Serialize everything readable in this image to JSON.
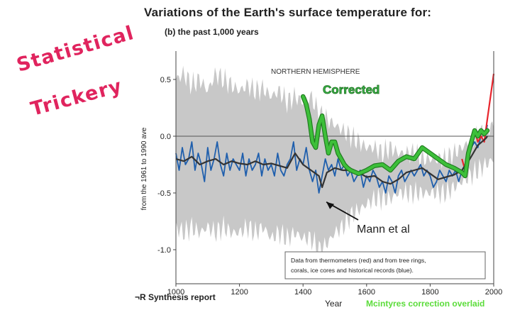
{
  "figure": {
    "title": "Variations of the Earth's surface temperature for:",
    "subtitle": "(b) the past 1,000 years",
    "handwritten_line1": "Statistical",
    "handwritten_line2": "Trickery",
    "source": "¬R Synthesis report",
    "credit": "Mcintyres correction overlaid",
    "colors": {
      "handwriting": "#e0245e",
      "credit": "#5bdc3a"
    }
  },
  "chart_data": {
    "type": "line",
    "title": "",
    "panel_label": "NORTHERN HEMISPHERE",
    "xlabel": "Year",
    "ylabel": "from the 1961 to 1990 ave",
    "xlim": [
      1000,
      2000
    ],
    "ylim": [
      -1.3,
      0.75
    ],
    "xticks": [
      1000,
      1200,
      1400,
      1600,
      1800,
      2000
    ],
    "yticks": [
      0.5,
      0.0,
      -0.5,
      -1.0
    ],
    "ytick_labels": [
      "0.5",
      "0.0",
      "-0.5",
      "-1.0"
    ],
    "grid": false,
    "legend_box_text": "Data from thermometers (red) and from tree rings, corals, ice cores and historical records (blue).",
    "annotations": [
      {
        "text": "Corrected",
        "color": "#39b54a",
        "x": 1460,
        "y": 0.47
      },
      {
        "text": "Mann et al",
        "color": "#222222",
        "x": 1640,
        "y": -0.8,
        "arrow_to": [
          1460,
          -0.53
        ]
      }
    ],
    "series": [
      {
        "role": "uncertainty",
        "color": "#c8c8c8",
        "x": [
          1000,
          1025,
          1050,
          1075,
          1100,
          1125,
          1150,
          1175,
          1200,
          1225,
          1250,
          1275,
          1300,
          1325,
          1350,
          1375,
          1400,
          1425,
          1450,
          1475,
          1500,
          1525,
          1550,
          1575,
          1600,
          1625,
          1650,
          1675,
          1700,
          1725,
          1750,
          1775,
          1800,
          1825,
          1850,
          1875,
          1900,
          1925,
          1950,
          1975,
          2000
        ],
        "upper": [
          0.5,
          0.55,
          0.45,
          0.5,
          0.4,
          0.55,
          0.5,
          0.45,
          0.4,
          0.45,
          0.4,
          0.42,
          0.35,
          0.4,
          0.3,
          0.35,
          0.3,
          0.35,
          0.2,
          0.15,
          0.1,
          0.05,
          0.0,
          -0.05,
          -0.1,
          -0.1,
          -0.15,
          -0.1,
          -0.15,
          -0.15,
          -0.15,
          -0.2,
          -0.2,
          -0.2,
          -0.2,
          -0.15,
          -0.1,
          -0.05,
          0.0,
          0.05,
          0.1
        ],
        "lower": [
          -0.8,
          -0.85,
          -0.8,
          -0.85,
          -0.8,
          -0.85,
          -0.8,
          -0.85,
          -0.85,
          -0.8,
          -0.85,
          -0.8,
          -0.9,
          -0.85,
          -0.9,
          -0.85,
          -0.9,
          -0.9,
          -1.0,
          -0.95,
          -0.85,
          -0.8,
          -0.7,
          -0.65,
          -0.6,
          -0.55,
          -0.55,
          -0.55,
          -0.5,
          -0.5,
          -0.5,
          -0.5,
          -0.5,
          -0.5,
          -0.5,
          -0.45,
          -0.4,
          -0.35,
          -0.3,
          -0.25,
          -0.2
        ]
      },
      {
        "role": "annual",
        "color": "#1f5fad",
        "x": [
          1000,
          1010,
          1020,
          1030,
          1040,
          1050,
          1060,
          1070,
          1080,
          1090,
          1100,
          1110,
          1120,
          1130,
          1140,
          1150,
          1160,
          1170,
          1180,
          1190,
          1200,
          1210,
          1220,
          1230,
          1240,
          1250,
          1260,
          1270,
          1280,
          1290,
          1300,
          1310,
          1320,
          1330,
          1340,
          1350,
          1360,
          1370,
          1380,
          1390,
          1400,
          1410,
          1420,
          1430,
          1440,
          1450,
          1460,
          1470,
          1480,
          1490,
          1500,
          1510,
          1520,
          1530,
          1540,
          1550,
          1560,
          1570,
          1580,
          1590,
          1600,
          1610,
          1620,
          1630,
          1640,
          1650,
          1660,
          1670,
          1680,
          1690,
          1700,
          1710,
          1720,
          1730,
          1740,
          1750,
          1760,
          1770,
          1780,
          1790,
          1800,
          1810,
          1820,
          1830,
          1840,
          1850,
          1860,
          1870,
          1880,
          1890,
          1900,
          1910,
          1920,
          1930,
          1940,
          1950,
          1960,
          1970,
          1980
        ],
        "values": [
          -0.15,
          -0.3,
          -0.1,
          -0.25,
          -0.2,
          -0.05,
          -0.3,
          -0.15,
          -0.25,
          -0.4,
          -0.1,
          -0.3,
          -0.2,
          -0.05,
          -0.25,
          -0.35,
          -0.15,
          -0.3,
          -0.2,
          -0.25,
          -0.3,
          -0.15,
          -0.35,
          -0.2,
          -0.3,
          -0.25,
          -0.15,
          -0.35,
          -0.2,
          -0.3,
          -0.25,
          -0.35,
          -0.15,
          -0.3,
          -0.35,
          -0.25,
          -0.2,
          -0.05,
          -0.3,
          -0.2,
          -0.25,
          -0.1,
          -0.3,
          -0.4,
          -0.3,
          -0.5,
          -0.35,
          -0.2,
          -0.3,
          -0.25,
          -0.35,
          -0.2,
          -0.3,
          -0.25,
          -0.35,
          -0.3,
          -0.4,
          -0.35,
          -0.3,
          -0.45,
          -0.35,
          -0.4,
          -0.3,
          -0.35,
          -0.45,
          -0.4,
          -0.5,
          -0.35,
          -0.4,
          -0.5,
          -0.35,
          -0.3,
          -0.4,
          -0.35,
          -0.3,
          -0.35,
          -0.3,
          -0.25,
          -0.35,
          -0.3,
          -0.35,
          -0.45,
          -0.4,
          -0.3,
          -0.35,
          -0.4,
          -0.3,
          -0.35,
          -0.3,
          -0.4,
          -0.3,
          -0.25,
          -0.2,
          -0.1,
          -0.05,
          -0.1,
          0.0,
          -0.05,
          0.1
        ]
      },
      {
        "role": "smoothed",
        "color": "#333333",
        "x": [
          1000,
          1025,
          1050,
          1075,
          1100,
          1125,
          1150,
          1175,
          1200,
          1225,
          1250,
          1275,
          1300,
          1325,
          1350,
          1375,
          1400,
          1425,
          1450,
          1460,
          1475,
          1500,
          1525,
          1550,
          1575,
          1600,
          1625,
          1650,
          1675,
          1700,
          1725,
          1750,
          1775,
          1800,
          1825,
          1850,
          1875,
          1900,
          1925,
          1950,
          1975,
          1980
        ],
        "values": [
          -0.2,
          -0.22,
          -0.18,
          -0.25,
          -0.22,
          -0.2,
          -0.25,
          -0.22,
          -0.24,
          -0.25,
          -0.22,
          -0.25,
          -0.24,
          -0.26,
          -0.28,
          -0.15,
          -0.25,
          -0.3,
          -0.35,
          -0.45,
          -0.32,
          -0.28,
          -0.3,
          -0.3,
          -0.32,
          -0.36,
          -0.35,
          -0.4,
          -0.42,
          -0.38,
          -0.32,
          -0.3,
          -0.28,
          -0.33,
          -0.38,
          -0.36,
          -0.34,
          -0.3,
          -0.2,
          -0.08,
          -0.02,
          0.0
        ]
      },
      {
        "role": "corrected",
        "color": "#3dbf3a",
        "x": [
          1400,
          1410,
          1420,
          1430,
          1440,
          1450,
          1460,
          1470,
          1480,
          1490,
          1500,
          1510,
          1520,
          1530,
          1540,
          1550,
          1575,
          1600,
          1625,
          1650,
          1675,
          1700,
          1725,
          1750,
          1775,
          1800,
          1825,
          1850,
          1875,
          1900,
          1910,
          1920,
          1930,
          1940,
          1950,
          1960,
          1970,
          1980
        ],
        "values": [
          0.35,
          0.28,
          0.15,
          -0.05,
          -0.1,
          0.1,
          0.18,
          0.0,
          -0.15,
          -0.05,
          -0.05,
          -0.15,
          -0.2,
          -0.25,
          -0.28,
          -0.3,
          -0.33,
          -0.3,
          -0.26,
          -0.25,
          -0.3,
          -0.22,
          -0.18,
          -0.2,
          -0.1,
          -0.15,
          -0.2,
          -0.25,
          -0.28,
          -0.32,
          -0.35,
          -0.15,
          -0.05,
          0.05,
          0.0,
          0.05,
          0.02,
          0.05
        ]
      },
      {
        "role": "instrumental",
        "color": "#e8242c",
        "x": [
          1900,
          1910,
          1920,
          1930,
          1940,
          1950,
          1960,
          1970,
          1980,
          1990,
          2000
        ],
        "values": [
          -0.2,
          -0.3,
          -0.15,
          -0.05,
          0.05,
          -0.05,
          0.0,
          -0.05,
          0.15,
          0.35,
          0.55
        ]
      }
    ]
  }
}
